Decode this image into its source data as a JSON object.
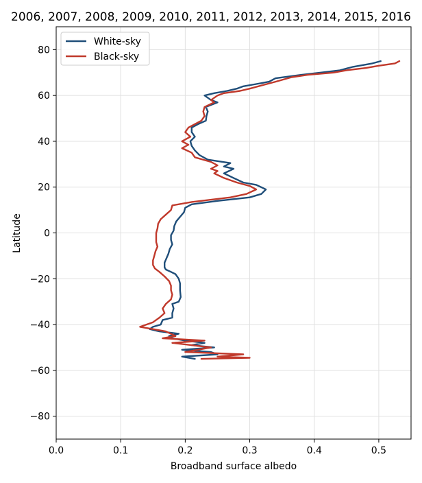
{
  "chart_data": {
    "type": "line",
    "title": "2006, 2007, 2008, 2009, 2010, 2011, 2012, 2013, 2014, 2015, 2016",
    "xlabel": "Broadband surface albedo",
    "ylabel": "Latitude",
    "xlim": [
      0.0,
      0.55
    ],
    "ylim": [
      -90,
      90
    ],
    "xticks": [
      0.0,
      0.1,
      0.2,
      0.3,
      0.4,
      0.5
    ],
    "xtick_labels": [
      "0.0",
      "0.1",
      "0.2",
      "0.3",
      "0.4",
      "0.5"
    ],
    "yticks": [
      -80,
      -60,
      -40,
      -20,
      0,
      20,
      40,
      60,
      80
    ],
    "ytick_labels": [
      "−80",
      "−60",
      "−40",
      "−20",
      "0",
      "20",
      "40",
      "60",
      "80"
    ],
    "grid": true,
    "legend_position": "top-left",
    "series": [
      {
        "name": "White-sky",
        "color": "#1f4e79",
        "points": [
          [
            0.503,
            75
          ],
          [
            0.49,
            74
          ],
          [
            0.46,
            72.5
          ],
          [
            0.44,
            71
          ],
          [
            0.41,
            70
          ],
          [
            0.38,
            69
          ],
          [
            0.34,
            67.5
          ],
          [
            0.33,
            66
          ],
          [
            0.31,
            65
          ],
          [
            0.29,
            64
          ],
          [
            0.28,
            63
          ],
          [
            0.265,
            62
          ],
          [
            0.245,
            61
          ],
          [
            0.23,
            60
          ],
          [
            0.24,
            58
          ],
          [
            0.25,
            57
          ],
          [
            0.232,
            55
          ],
          [
            0.235,
            53
          ],
          [
            0.233,
            51
          ],
          [
            0.232,
            49
          ],
          [
            0.22,
            47.5
          ],
          [
            0.21,
            46
          ],
          [
            0.21,
            44
          ],
          [
            0.215,
            42
          ],
          [
            0.208,
            40
          ],
          [
            0.21,
            38
          ],
          [
            0.215,
            36
          ],
          [
            0.222,
            34
          ],
          [
            0.235,
            32
          ],
          [
            0.27,
            30.5
          ],
          [
            0.26,
            29
          ],
          [
            0.275,
            28
          ],
          [
            0.26,
            26
          ],
          [
            0.275,
            24
          ],
          [
            0.29,
            22
          ],
          [
            0.31,
            21
          ],
          [
            0.325,
            19
          ],
          [
            0.318,
            17
          ],
          [
            0.3,
            15.5
          ],
          [
            0.25,
            14
          ],
          [
            0.21,
            12.5
          ],
          [
            0.2,
            11
          ],
          [
            0.198,
            9
          ],
          [
            0.192,
            7
          ],
          [
            0.186,
            5
          ],
          [
            0.183,
            3
          ],
          [
            0.182,
            1
          ],
          [
            0.178,
            -1
          ],
          [
            0.178,
            -3
          ],
          [
            0.18,
            -5
          ],
          [
            0.176,
            -7
          ],
          [
            0.174,
            -9
          ],
          [
            0.171,
            -11
          ],
          [
            0.168,
            -13
          ],
          [
            0.168,
            -15
          ],
          [
            0.17,
            -16
          ],
          [
            0.178,
            -17
          ],
          [
            0.185,
            -18
          ],
          [
            0.19,
            -20
          ],
          [
            0.192,
            -22
          ],
          [
            0.192,
            -25
          ],
          [
            0.193,
            -28
          ],
          [
            0.19,
            -30
          ],
          [
            0.18,
            -31
          ],
          [
            0.182,
            -33
          ],
          [
            0.18,
            -35
          ],
          [
            0.18,
            -37
          ],
          [
            0.165,
            -38
          ],
          [
            0.162,
            -40
          ],
          [
            0.15,
            -41
          ],
          [
            0.145,
            -42
          ],
          [
            0.16,
            -43
          ],
          [
            0.19,
            -44
          ],
          [
            0.175,
            -45
          ],
          [
            0.18,
            -46
          ],
          [
            0.2,
            -47
          ],
          [
            0.23,
            -48
          ],
          [
            0.21,
            -49
          ],
          [
            0.245,
            -50
          ],
          [
            0.195,
            -51
          ],
          [
            0.24,
            -52
          ],
          [
            0.25,
            -53
          ],
          [
            0.195,
            -54
          ],
          [
            0.215,
            -55
          ]
        ]
      },
      {
        "name": "Black-sky",
        "color": "#c0392b",
        "points": [
          [
            0.532,
            75
          ],
          [
            0.525,
            74
          ],
          [
            0.5,
            73
          ],
          [
            0.48,
            72
          ],
          [
            0.45,
            71
          ],
          [
            0.43,
            70
          ],
          [
            0.39,
            69
          ],
          [
            0.365,
            68
          ],
          [
            0.34,
            66
          ],
          [
            0.32,
            64.5
          ],
          [
            0.3,
            63
          ],
          [
            0.285,
            62
          ],
          [
            0.26,
            61
          ],
          [
            0.25,
            60
          ],
          [
            0.24,
            58
          ],
          [
            0.245,
            57
          ],
          [
            0.23,
            55
          ],
          [
            0.228,
            53
          ],
          [
            0.23,
            51
          ],
          [
            0.225,
            49
          ],
          [
            0.215,
            47.5
          ],
          [
            0.205,
            46
          ],
          [
            0.2,
            44
          ],
          [
            0.208,
            42
          ],
          [
            0.195,
            40
          ],
          [
            0.205,
            38.5
          ],
          [
            0.195,
            37
          ],
          [
            0.21,
            35
          ],
          [
            0.215,
            33
          ],
          [
            0.24,
            31
          ],
          [
            0.25,
            29.5
          ],
          [
            0.24,
            28
          ],
          [
            0.25,
            27
          ],
          [
            0.245,
            26
          ],
          [
            0.26,
            24
          ],
          [
            0.28,
            22
          ],
          [
            0.3,
            20.5
          ],
          [
            0.31,
            19
          ],
          [
            0.295,
            17
          ],
          [
            0.27,
            15.5
          ],
          [
            0.21,
            13.5
          ],
          [
            0.18,
            12
          ],
          [
            0.178,
            10
          ],
          [
            0.17,
            8
          ],
          [
            0.162,
            6
          ],
          [
            0.158,
            4
          ],
          [
            0.157,
            2
          ],
          [
            0.155,
            0
          ],
          [
            0.155,
            -2
          ],
          [
            0.155,
            -4
          ],
          [
            0.157,
            -6
          ],
          [
            0.154,
            -8
          ],
          [
            0.152,
            -10
          ],
          [
            0.15,
            -12
          ],
          [
            0.15,
            -14
          ],
          [
            0.153,
            -15.5
          ],
          [
            0.16,
            -17
          ],
          [
            0.168,
            -19
          ],
          [
            0.175,
            -21
          ],
          [
            0.178,
            -23
          ],
          [
            0.178,
            -25
          ],
          [
            0.18,
            -27
          ],
          [
            0.178,
            -29
          ],
          [
            0.17,
            -31
          ],
          [
            0.165,
            -33
          ],
          [
            0.168,
            -35
          ],
          [
            0.16,
            -37
          ],
          [
            0.15,
            -39
          ],
          [
            0.13,
            -41
          ],
          [
            0.15,
            -42
          ],
          [
            0.17,
            -43
          ],
          [
            0.185,
            -45
          ],
          [
            0.165,
            -46
          ],
          [
            0.23,
            -47
          ],
          [
            0.18,
            -48
          ],
          [
            0.24,
            -50
          ],
          [
            0.2,
            -52
          ],
          [
            0.29,
            -53
          ],
          [
            0.25,
            -54
          ],
          [
            0.3,
            -54.5
          ],
          [
            0.225,
            -55
          ]
        ]
      }
    ]
  }
}
